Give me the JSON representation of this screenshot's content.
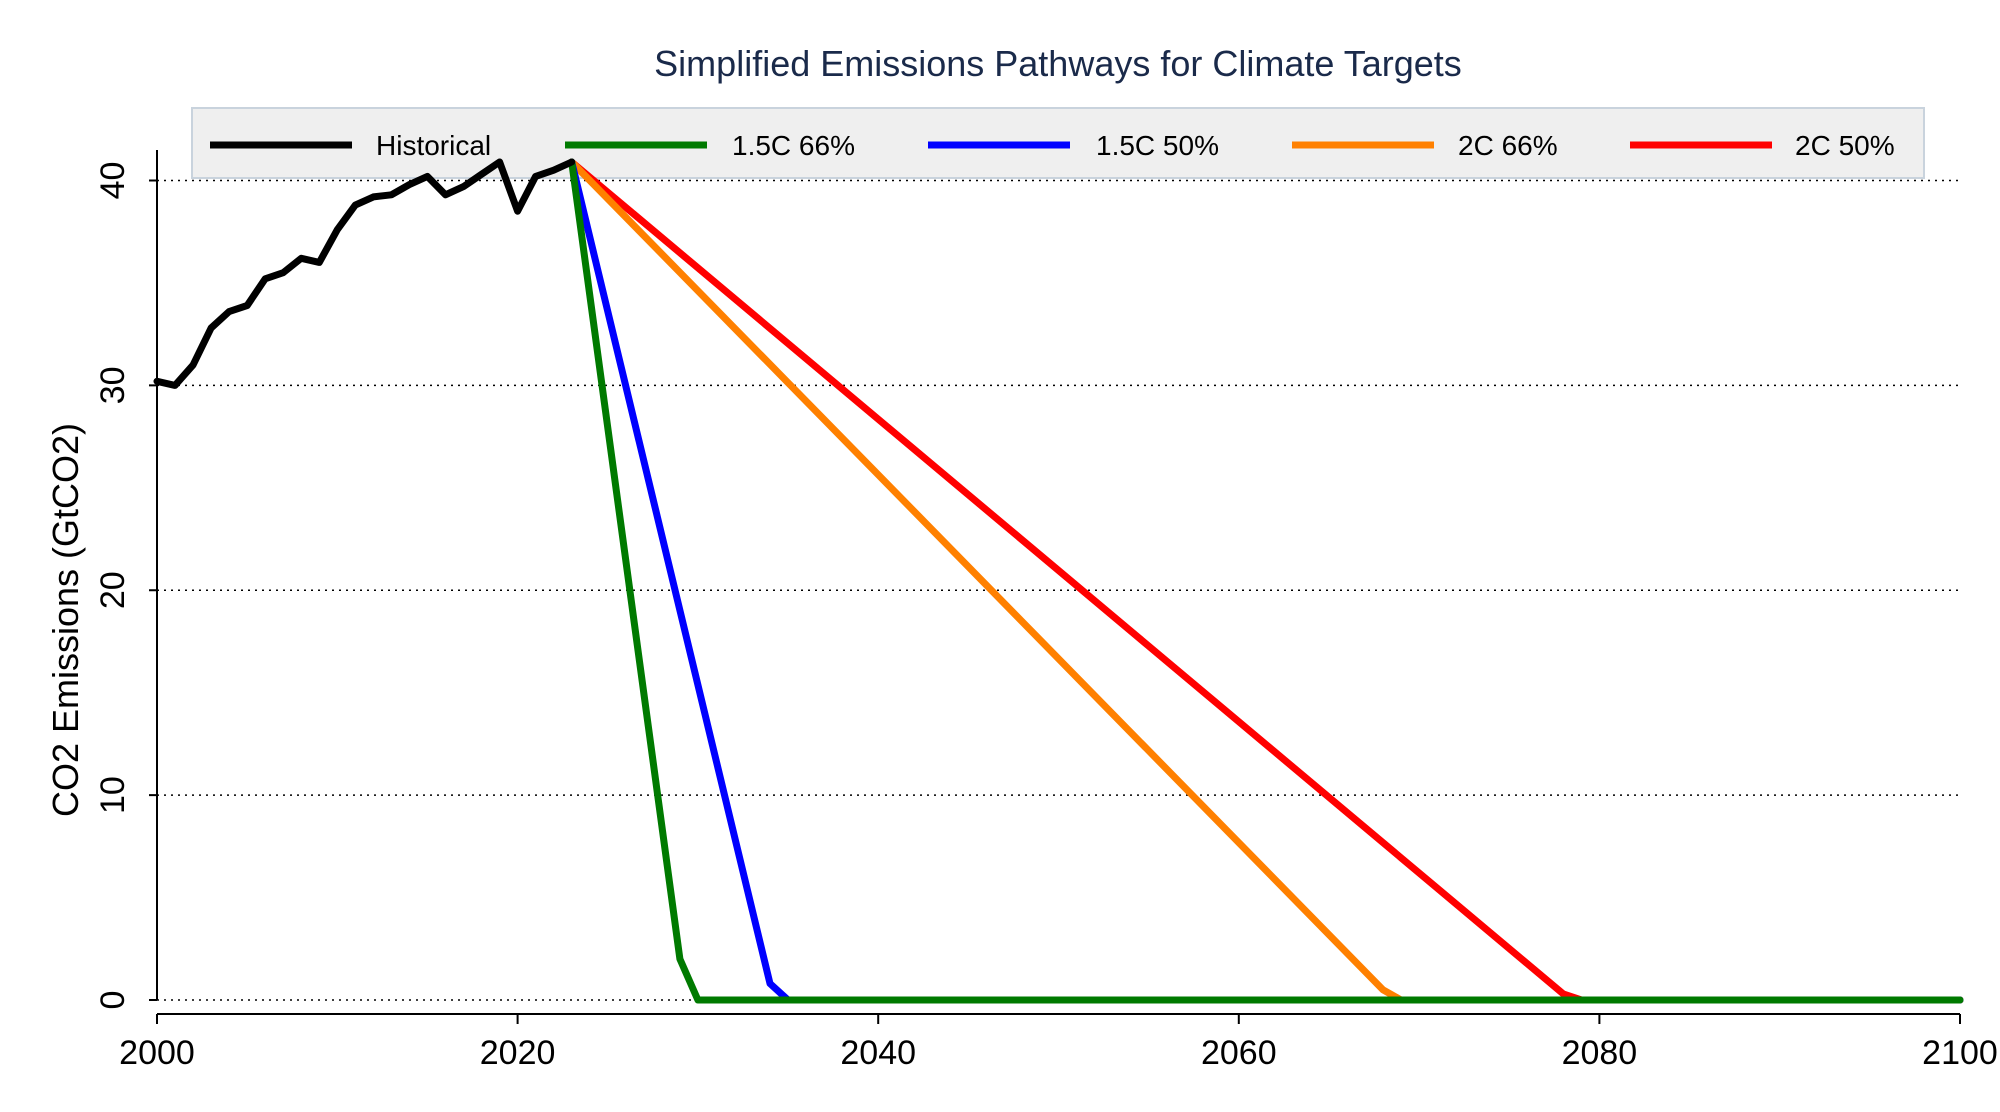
{
  "chart_data": {
    "type": "line",
    "title": "Simplified Emissions Pathways for Climate Targets",
    "xlabel": "",
    "ylabel": "CO2 Emissions (GtCO2)",
    "xlim": [
      2000,
      2100
    ],
    "ylim": [
      0,
      41
    ],
    "x_ticks": [
      2000,
      2020,
      2040,
      2060,
      2080,
      2100
    ],
    "x_tick_labels": [
      "2000",
      "2020",
      "2040",
      "2060",
      "2080",
      "2100"
    ],
    "y_ticks": [
      0,
      10,
      20,
      30,
      40
    ],
    "y_tick_labels": [
      "0",
      "10",
      "20",
      "30",
      "40"
    ],
    "grid": "horizontal dotted",
    "legend_position": "top",
    "series": [
      {
        "name": "Historical",
        "color": "#000000",
        "points": [
          [
            2000,
            30.2
          ],
          [
            2001,
            30.0
          ],
          [
            2002,
            31.0
          ],
          [
            2003,
            32.8
          ],
          [
            2004,
            33.6
          ],
          [
            2005,
            33.9
          ],
          [
            2006,
            35.2
          ],
          [
            2007,
            35.5
          ],
          [
            2008,
            36.2
          ],
          [
            2009,
            36.0
          ],
          [
            2010,
            37.6
          ],
          [
            2011,
            38.8
          ],
          [
            2012,
            39.2
          ],
          [
            2013,
            39.3
          ],
          [
            2014,
            39.8
          ],
          [
            2015,
            40.2
          ],
          [
            2016,
            39.3
          ],
          [
            2017,
            39.7
          ],
          [
            2018,
            40.3
          ],
          [
            2019,
            40.9
          ],
          [
            2020,
            38.5
          ],
          [
            2021,
            40.2
          ],
          [
            2022,
            40.5
          ],
          [
            2023,
            40.9
          ]
        ]
      },
      {
        "name": "1.5C 66%",
        "color": "#007a00",
        "points": [
          [
            2023,
            40.9
          ],
          [
            2029,
            2.0
          ],
          [
            2030,
            0
          ],
          [
            2100,
            0
          ]
        ]
      },
      {
        "name": "1.5C 50%",
        "color": "#0000ff",
        "points": [
          [
            2023,
            40.9
          ],
          [
            2034,
            0.8
          ],
          [
            2035,
            0
          ],
          [
            2100,
            0
          ]
        ]
      },
      {
        "name": "2C 66%",
        "color": "#ff8000",
        "points": [
          [
            2023,
            40.9
          ],
          [
            2068,
            0.5
          ],
          [
            2069,
            0
          ],
          [
            2100,
            0
          ]
        ]
      },
      {
        "name": "2C 50%",
        "color": "#ff0000",
        "points": [
          [
            2023,
            40.9
          ],
          [
            2078,
            0.3
          ],
          [
            2079,
            0
          ],
          [
            2100,
            0
          ]
        ]
      }
    ]
  }
}
